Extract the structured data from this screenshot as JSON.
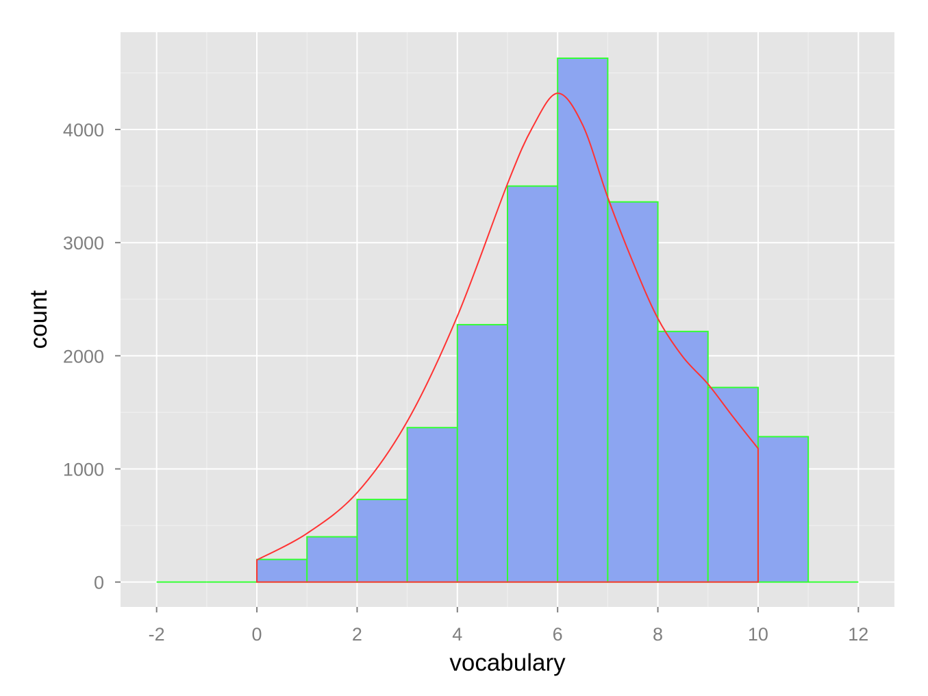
{
  "chart_data": {
    "type": "bar",
    "subtype": "histogram",
    "title": "",
    "xlabel": "vocabulary",
    "ylabel": "count",
    "xlim": [
      -2.72,
      12.72
    ],
    "ylim": [
      -220,
      4860
    ],
    "x_ticks": [
      -2,
      0,
      2,
      4,
      6,
      8,
      10,
      12
    ],
    "x_tick_labels": [
      "-2",
      "0",
      "2",
      "4",
      "6",
      "8",
      "10",
      "12"
    ],
    "y_ticks": [
      0,
      1000,
      2000,
      3000,
      4000
    ],
    "y_tick_labels": [
      "0",
      "1000",
      "2000",
      "3000",
      "4000"
    ],
    "grid": true,
    "bins": {
      "x_start": [
        -2,
        -1,
        0,
        1,
        2,
        3,
        4,
        5,
        6,
        7,
        8,
        9,
        10,
        11
      ],
      "x_end": [
        -1,
        0,
        1,
        2,
        3,
        4,
        5,
        6,
        7,
        8,
        9,
        10,
        11,
        12
      ],
      "counts": [
        0,
        0,
        200,
        400,
        730,
        1365,
        2275,
        3500,
        4630,
        3360,
        2215,
        1720,
        1285,
        0
      ]
    },
    "curve": {
      "x": [
        0,
        1,
        2,
        3,
        4,
        5,
        5.5,
        6,
        6.5,
        7,
        7.5,
        8,
        8.5,
        9,
        9.5,
        10,
        10
      ],
      "y": [
        195,
        430,
        790,
        1420,
        2350,
        3520,
        4020,
        4320,
        4040,
        3400,
        2830,
        2330,
        1990,
        1750,
        1460,
        1180,
        0
      ]
    },
    "colors": {
      "panel_background": "#e5e5e5",
      "grid_major": "#ffffff",
      "grid_minor": "#f2f2f2",
      "bar_fill": "#8ca5f1",
      "bar_outline": "#33ff33",
      "curve": "#ff3333"
    }
  }
}
